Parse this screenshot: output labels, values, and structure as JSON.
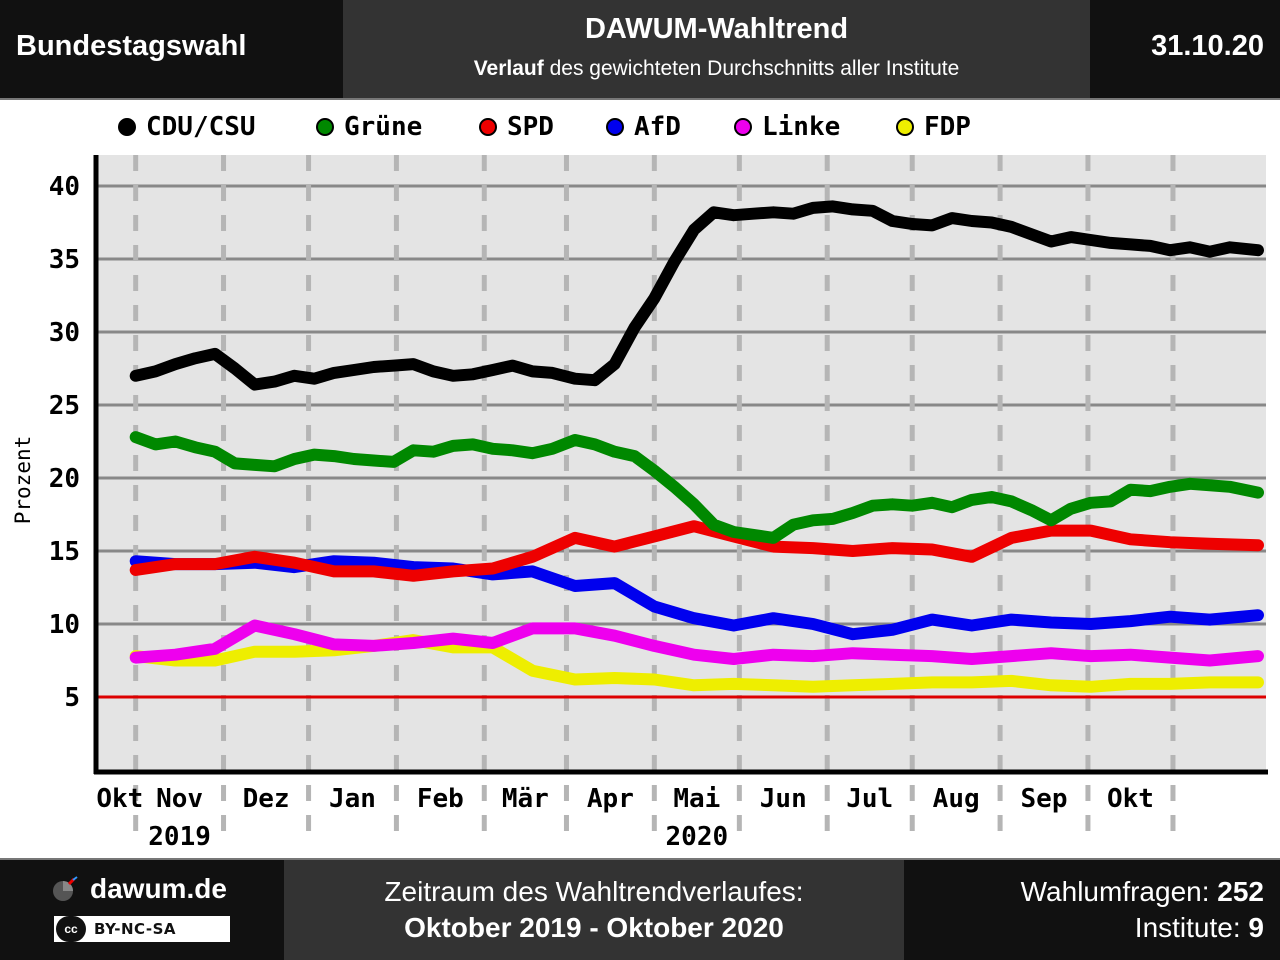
{
  "header": {
    "left": "Bundestagswahl",
    "title": "DAWUM-Wahltrend",
    "subtitle_bold": "Verlauf",
    "subtitle_rest": " des gewichteten Durchschnitts aller Institute",
    "date": "31.10.20"
  },
  "footer": {
    "brand": "dawum.de",
    "license": "BY-NC-SA",
    "license_cc": "cc",
    "period_label": "Zeitraum des Wahltrendverlaufes:",
    "period_value": "Oktober 2019 - Oktober 2020",
    "polls_label": "Wahlumfragen: ",
    "polls_value": "252",
    "institutes_label": "Institute: ",
    "institutes_value": "9"
  },
  "chart_data": {
    "type": "line",
    "ylabel": "Prozent",
    "ylim": [
      0,
      42
    ],
    "yticks": [
      5,
      10,
      15,
      20,
      25,
      30,
      35,
      40
    ],
    "threshold": 5,
    "threshold_color": "#dd0000",
    "grid": true,
    "legend_position": "top",
    "x_start_date": "2019-10-01",
    "x_end_date": "2020-10-31",
    "x_axis_start_date": "2019-09-17",
    "month_labels": [
      "Okt",
      "Nov",
      "Dez",
      "Jan",
      "Feb",
      "Mär",
      "Apr",
      "Mai",
      "Jun",
      "Jul",
      "Aug",
      "Sep",
      "Okt"
    ],
    "month_boundaries": [
      "2019-10-01",
      "2019-11-01",
      "2019-12-01",
      "2020-01-01",
      "2020-02-01",
      "2020-03-01",
      "2020-04-01",
      "2020-05-01",
      "2020-06-01",
      "2020-07-01",
      "2020-08-01",
      "2020-09-01",
      "2020-10-01"
    ],
    "year_labels": [
      {
        "text": "2019",
        "month_index": 1
      },
      {
        "text": "2020",
        "month_index": 7
      }
    ],
    "series": [
      {
        "name": "CDU/CSU",
        "color": "#000000",
        "x": [
          "2019-10-01",
          "2019-10-08",
          "2019-10-15",
          "2019-10-22",
          "2019-10-29",
          "2019-11-05",
          "2019-11-12",
          "2019-11-19",
          "2019-11-26",
          "2019-12-03",
          "2019-12-10",
          "2019-12-17",
          "2019-12-24",
          "2019-12-31",
          "2020-01-07",
          "2020-01-14",
          "2020-01-21",
          "2020-01-28",
          "2020-02-04",
          "2020-02-11",
          "2020-02-18",
          "2020-02-25",
          "2020-03-04",
          "2020-03-11",
          "2020-03-18",
          "2020-03-25",
          "2020-04-01",
          "2020-04-08",
          "2020-04-15",
          "2020-04-22",
          "2020-04-29",
          "2020-05-06",
          "2020-05-13",
          "2020-05-20",
          "2020-05-27",
          "2020-06-03",
          "2020-06-10",
          "2020-06-17",
          "2020-06-24",
          "2020-07-01",
          "2020-07-08",
          "2020-07-15",
          "2020-07-22",
          "2020-07-29",
          "2020-08-05",
          "2020-08-12",
          "2020-08-19",
          "2020-08-26",
          "2020-09-02",
          "2020-09-09",
          "2020-09-16",
          "2020-09-23",
          "2020-09-30",
          "2020-10-07",
          "2020-10-14",
          "2020-10-21",
          "2020-10-31"
        ],
        "values": [
          27.0,
          27.3,
          27.8,
          28.2,
          28.5,
          27.5,
          26.4,
          26.6,
          27.0,
          26.8,
          27.2,
          27.4,
          27.6,
          27.7,
          27.8,
          27.3,
          27.0,
          27.1,
          27.4,
          27.7,
          27.3,
          27.2,
          26.8,
          26.7,
          27.8,
          30.3,
          32.3,
          34.8,
          37.0,
          38.2,
          38.0,
          38.1,
          38.2,
          38.1,
          38.5,
          38.6,
          38.4,
          38.3,
          37.6,
          37.4,
          37.3,
          37.8,
          37.6,
          37.5,
          37.2,
          36.7,
          36.2,
          36.5,
          36.3,
          36.1,
          36.0,
          35.9,
          35.6,
          35.8,
          35.5,
          35.8,
          35.6
        ]
      },
      {
        "name": "Grüne",
        "color": "#008800",
        "x": [
          "2019-10-01",
          "2019-10-08",
          "2019-10-15",
          "2019-10-22",
          "2019-10-29",
          "2019-11-05",
          "2019-11-12",
          "2019-11-19",
          "2019-11-26",
          "2019-12-03",
          "2019-12-10",
          "2019-12-17",
          "2019-12-24",
          "2019-12-31",
          "2020-01-07",
          "2020-01-14",
          "2020-01-21",
          "2020-01-28",
          "2020-02-04",
          "2020-02-11",
          "2020-02-18",
          "2020-02-25",
          "2020-03-04",
          "2020-03-11",
          "2020-03-18",
          "2020-03-25",
          "2020-04-01",
          "2020-04-08",
          "2020-04-15",
          "2020-04-22",
          "2020-04-29",
          "2020-05-06",
          "2020-05-13",
          "2020-05-20",
          "2020-05-27",
          "2020-06-03",
          "2020-06-10",
          "2020-06-17",
          "2020-06-24",
          "2020-07-01",
          "2020-07-08",
          "2020-07-15",
          "2020-07-22",
          "2020-07-29",
          "2020-08-05",
          "2020-08-12",
          "2020-08-19",
          "2020-08-26",
          "2020-09-02",
          "2020-09-09",
          "2020-09-16",
          "2020-09-23",
          "2020-09-30",
          "2020-10-07",
          "2020-10-14",
          "2020-10-21",
          "2020-10-31"
        ],
        "values": [
          22.8,
          22.3,
          22.5,
          22.1,
          21.8,
          21.0,
          20.9,
          20.8,
          21.3,
          21.6,
          21.5,
          21.3,
          21.2,
          21.1,
          21.9,
          21.8,
          22.2,
          22.3,
          22.0,
          21.9,
          21.7,
          22.0,
          22.6,
          22.3,
          21.8,
          21.5,
          20.5,
          19.4,
          18.2,
          16.8,
          16.3,
          16.1,
          15.9,
          16.8,
          17.1,
          17.2,
          17.6,
          18.1,
          18.2,
          18.1,
          18.3,
          18.0,
          18.5,
          18.7,
          18.4,
          17.8,
          17.1,
          17.9,
          18.3,
          18.4,
          19.2,
          19.1,
          19.4,
          19.6,
          19.5,
          19.4,
          19.0
        ]
      },
      {
        "name": "SPD",
        "color": "#ee0000",
        "x": [
          "2019-10-01",
          "2019-10-15",
          "2019-10-29",
          "2019-11-12",
          "2019-11-26",
          "2019-12-10",
          "2019-12-24",
          "2020-01-07",
          "2020-01-21",
          "2020-02-04",
          "2020-02-18",
          "2020-03-04",
          "2020-03-18",
          "2020-04-01",
          "2020-04-15",
          "2020-04-29",
          "2020-05-13",
          "2020-05-27",
          "2020-06-10",
          "2020-06-24",
          "2020-07-08",
          "2020-07-22",
          "2020-08-05",
          "2020-08-19",
          "2020-09-02",
          "2020-09-16",
          "2020-09-30",
          "2020-10-14",
          "2020-10-31"
        ],
        "values": [
          13.7,
          14.1,
          14.1,
          14.6,
          14.2,
          13.6,
          13.6,
          13.3,
          13.6,
          13.8,
          14.6,
          15.9,
          15.3,
          16.0,
          16.7,
          16.0,
          15.3,
          15.2,
          15.0,
          15.2,
          15.1,
          14.6,
          15.9,
          16.4,
          16.4,
          15.8,
          15.6,
          15.5,
          15.4
        ]
      },
      {
        "name": "AfD",
        "color": "#0000ee",
        "x": [
          "2019-10-01",
          "2019-10-15",
          "2019-10-29",
          "2019-11-12",
          "2019-11-26",
          "2019-12-10",
          "2019-12-24",
          "2020-01-07",
          "2020-01-21",
          "2020-02-04",
          "2020-02-18",
          "2020-03-04",
          "2020-03-18",
          "2020-04-01",
          "2020-04-15",
          "2020-04-29",
          "2020-05-13",
          "2020-05-27",
          "2020-06-10",
          "2020-06-24",
          "2020-07-08",
          "2020-07-22",
          "2020-08-05",
          "2020-08-19",
          "2020-09-02",
          "2020-09-16",
          "2020-09-30",
          "2020-10-14",
          "2020-10-31"
        ],
        "values": [
          14.3,
          14.1,
          14.1,
          14.2,
          13.9,
          14.3,
          14.2,
          13.9,
          13.8,
          13.4,
          13.6,
          12.6,
          12.8,
          11.2,
          10.4,
          9.9,
          10.4,
          10.0,
          9.3,
          9.6,
          10.3,
          9.9,
          10.3,
          10.1,
          10.0,
          10.2,
          10.5,
          10.3,
          10.6
        ]
      },
      {
        "name": "Linke",
        "color": "#ee00ee",
        "x": [
          "2019-10-01",
          "2019-10-15",
          "2019-10-29",
          "2019-11-12",
          "2019-11-26",
          "2019-12-10",
          "2019-12-24",
          "2020-01-07",
          "2020-01-21",
          "2020-02-04",
          "2020-02-18",
          "2020-03-04",
          "2020-03-18",
          "2020-04-01",
          "2020-04-15",
          "2020-04-29",
          "2020-05-13",
          "2020-05-27",
          "2020-06-10",
          "2020-06-24",
          "2020-07-08",
          "2020-07-22",
          "2020-08-05",
          "2020-08-19",
          "2020-09-02",
          "2020-09-16",
          "2020-09-30",
          "2020-10-14",
          "2020-10-31"
        ],
        "values": [
          7.7,
          7.9,
          8.3,
          9.9,
          9.3,
          8.6,
          8.5,
          8.7,
          9.0,
          8.7,
          9.7,
          9.7,
          9.2,
          8.5,
          7.9,
          7.6,
          7.9,
          7.8,
          8.0,
          7.9,
          7.8,
          7.6,
          7.8,
          8.0,
          7.8,
          7.9,
          7.7,
          7.5,
          7.8
        ]
      },
      {
        "name": "FDP",
        "color": "#eeee00",
        "x": [
          "2019-10-01",
          "2019-10-15",
          "2019-10-29",
          "2019-11-12",
          "2019-11-26",
          "2019-12-10",
          "2019-12-24",
          "2020-01-07",
          "2020-01-21",
          "2020-02-04",
          "2020-02-18",
          "2020-03-04",
          "2020-03-18",
          "2020-04-01",
          "2020-04-15",
          "2020-04-29",
          "2020-05-13",
          "2020-05-27",
          "2020-06-10",
          "2020-06-24",
          "2020-07-08",
          "2020-07-22",
          "2020-08-05",
          "2020-08-19",
          "2020-09-02",
          "2020-09-16",
          "2020-09-30",
          "2020-10-14",
          "2020-10-31"
        ],
        "values": [
          7.8,
          7.5,
          7.5,
          8.1,
          8.1,
          8.2,
          8.5,
          8.9,
          8.4,
          8.4,
          6.8,
          6.2,
          6.3,
          6.2,
          5.8,
          5.9,
          5.8,
          5.7,
          5.8,
          5.9,
          6.0,
          6.0,
          6.1,
          5.8,
          5.7,
          5.9,
          5.9,
          6.0,
          6.0
        ]
      }
    ]
  }
}
